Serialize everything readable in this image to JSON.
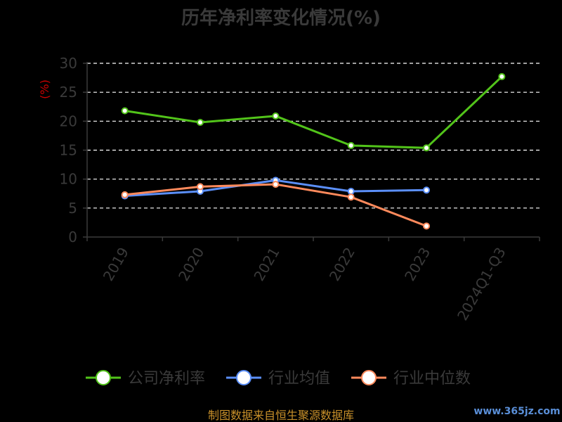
{
  "chart_data": {
    "type": "line",
    "title": "历年净利率变化情况(%)",
    "ylabel": "(%)",
    "xlabel": "",
    "categories": [
      "2019",
      "2020",
      "2021",
      "2022",
      "2023",
      "2024Q1-Q3"
    ],
    "ylim": [
      0,
      30
    ],
    "yticks": [
      0,
      5,
      10,
      15,
      20,
      25,
      30
    ],
    "grid": true,
    "legend_position": "bottom",
    "series": [
      {
        "name": "公司净利率",
        "color": "#52c41a",
        "values": [
          21.8,
          19.8,
          20.9,
          15.8,
          15.4,
          27.7
        ]
      },
      {
        "name": "行业均值",
        "color": "#5b8ff9",
        "values": [
          7.1,
          7.9,
          9.8,
          7.9,
          8.1,
          null
        ]
      },
      {
        "name": "行业中位数",
        "color": "#ff8a5c",
        "values": [
          7.3,
          8.7,
          9.1,
          6.9,
          1.9,
          null
        ]
      }
    ]
  },
  "footer": {
    "source": "制图数据来自恒生聚源数据库"
  },
  "watermark": {
    "text": "www.365jz.com"
  }
}
